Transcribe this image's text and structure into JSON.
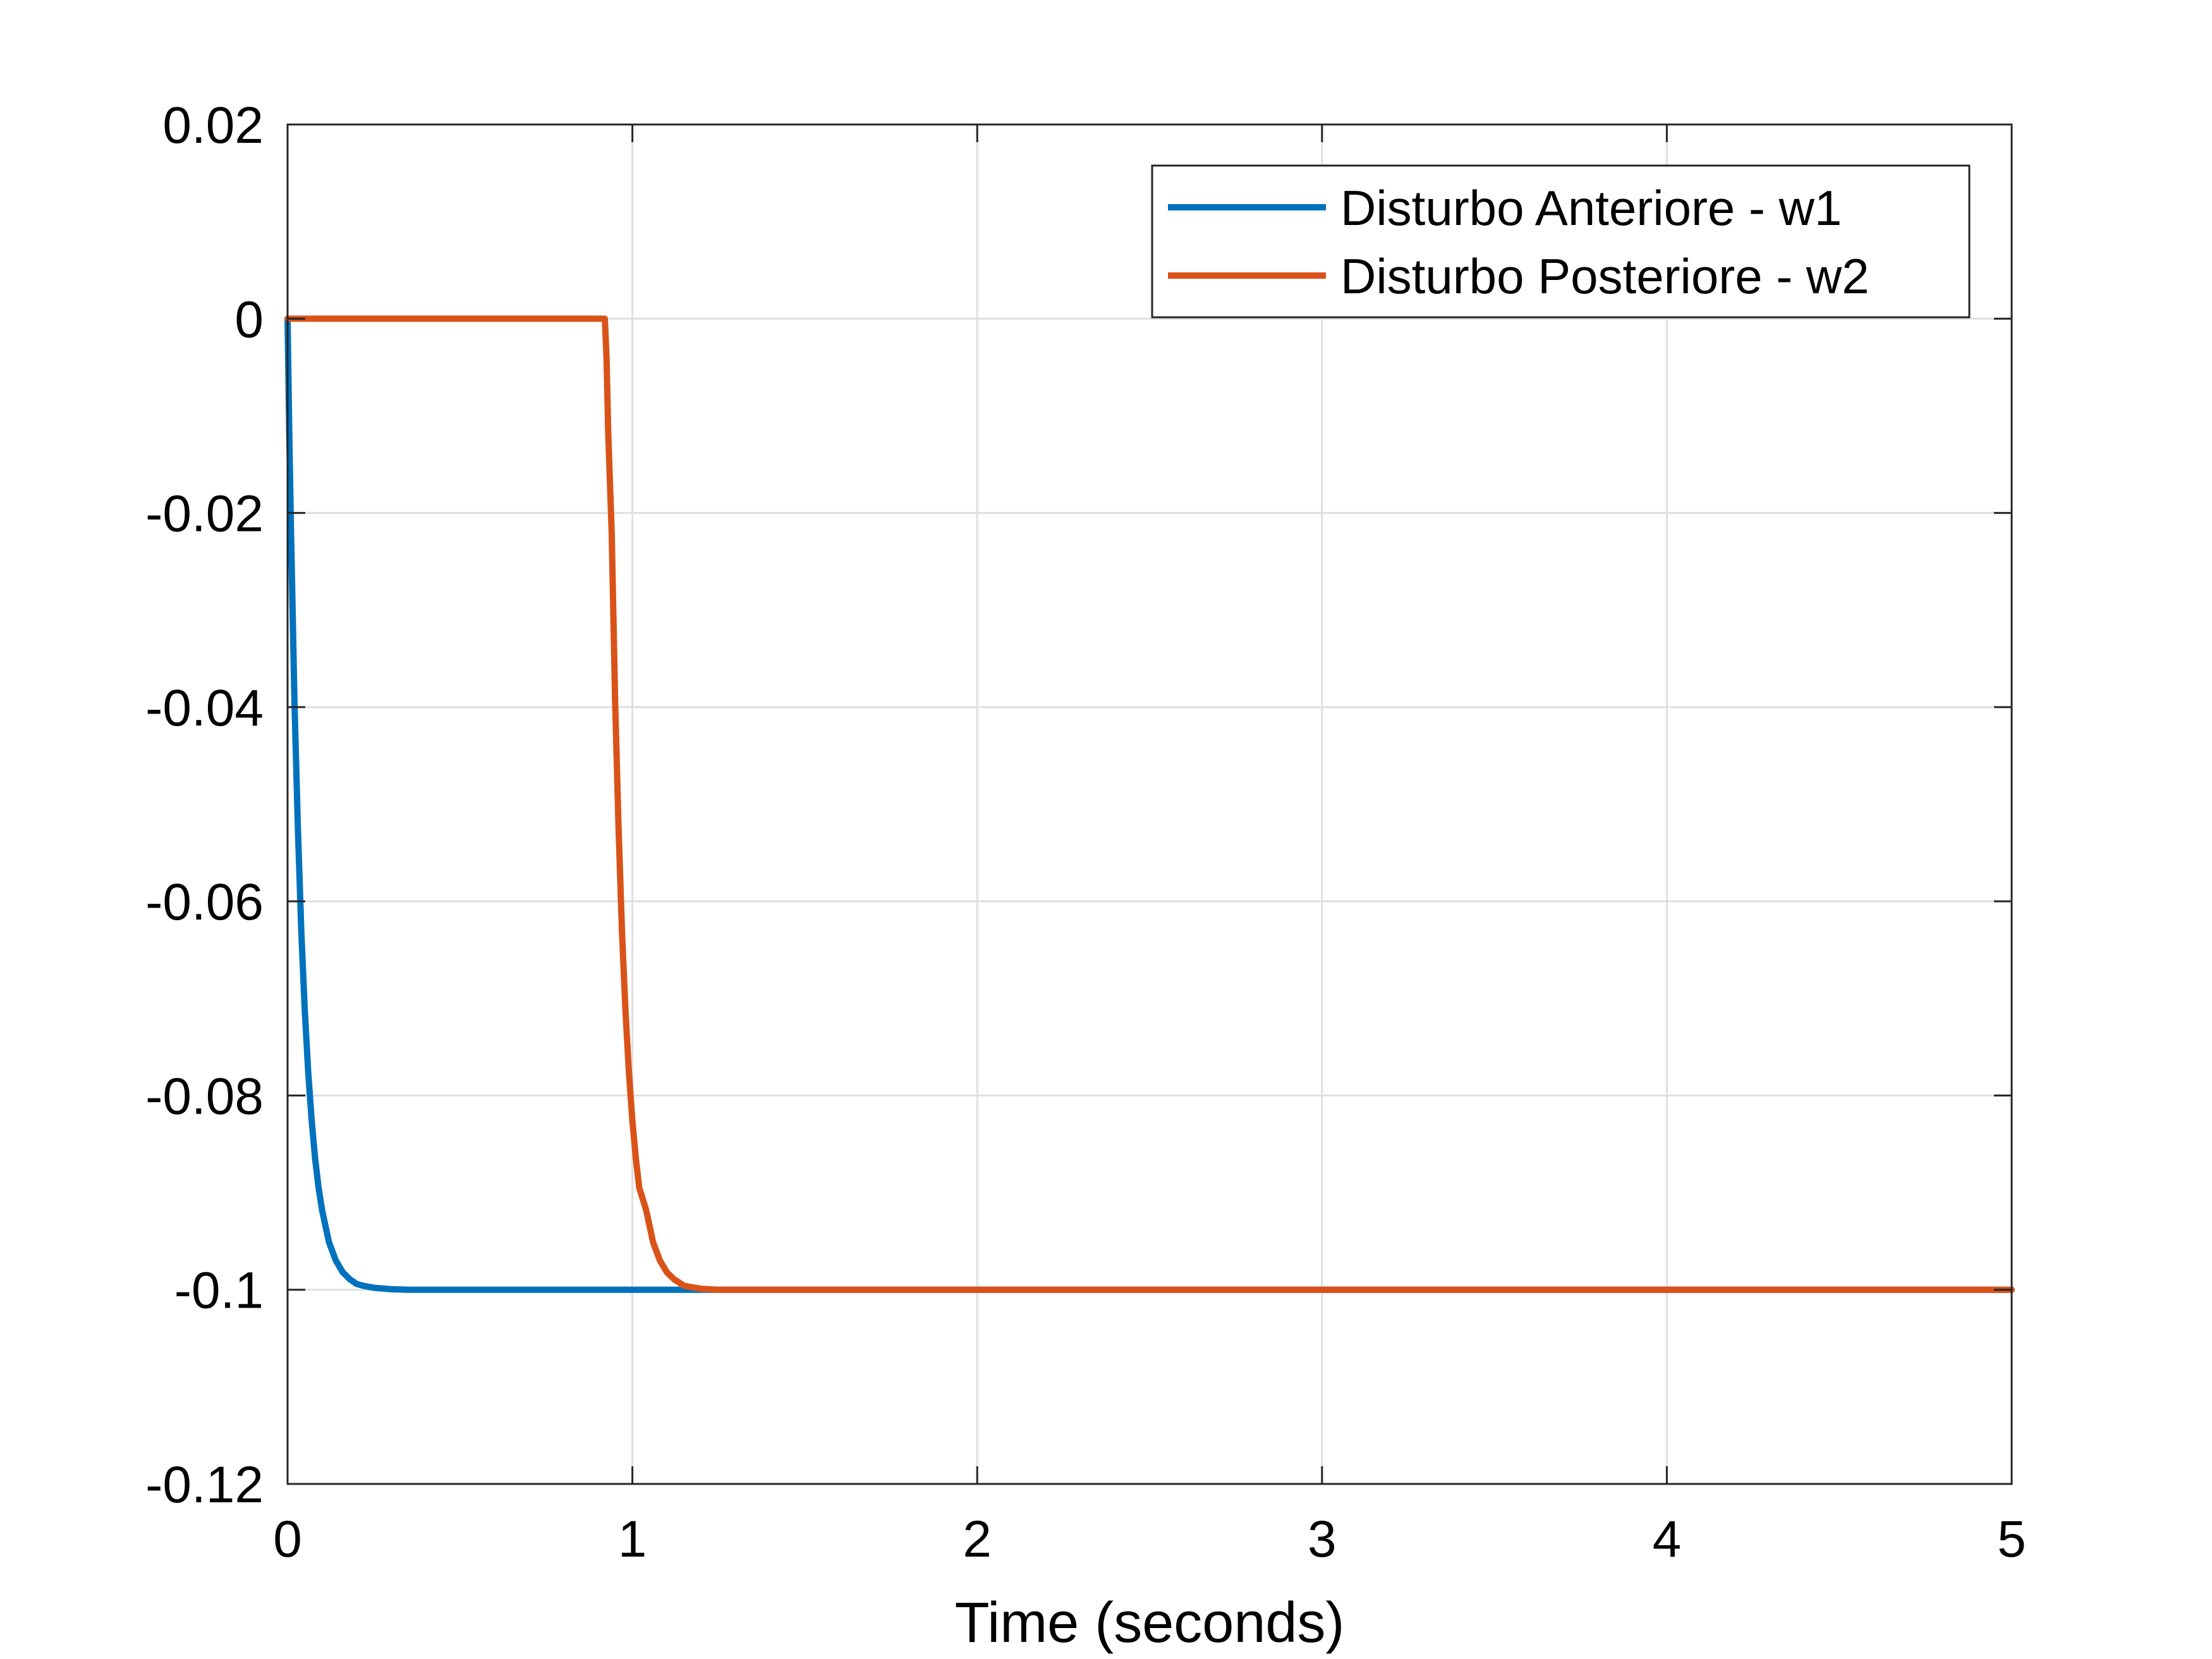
{
  "chart_data": {
    "type": "line",
    "title": "",
    "xlabel": "Time (seconds)",
    "ylabel": "",
    "xlim": [
      0,
      5
    ],
    "ylim": [
      -0.12,
      0.02
    ],
    "xticks": [
      0,
      1,
      2,
      3,
      4,
      5
    ],
    "xtick_labels": [
      "0",
      "1",
      "2",
      "3",
      "4",
      "5"
    ],
    "yticks": [
      0.02,
      0,
      -0.02,
      -0.04,
      -0.06,
      -0.08,
      -0.1,
      -0.12
    ],
    "ytick_labels": [
      "0.02",
      "0",
      "-0.02",
      "-0.04",
      "-0.06",
      "-0.08",
      "-0.1",
      "-0.12"
    ],
    "grid": true,
    "legend_position": "top-right",
    "series": [
      {
        "name": "Disturbo Anteriore - w1",
        "color": "#0072BD",
        "x": [
          0,
          0.005,
          0.01,
          0.02,
          0.03,
          0.04,
          0.05,
          0.06,
          0.07,
          0.08,
          0.09,
          0.1,
          0.12,
          0.14,
          0.16,
          0.18,
          0.2,
          0.22,
          0.25,
          0.3,
          0.35,
          0.4,
          0.5,
          0.7,
          1.0,
          1.3,
          5
        ],
        "y": [
          0,
          -0.0118,
          -0.0221,
          -0.0394,
          -0.0526,
          -0.0632,
          -0.0713,
          -0.0776,
          -0.0826,
          -0.0865,
          -0.0895,
          -0.0918,
          -0.0951,
          -0.097,
          -0.0982,
          -0.0989,
          -0.0994,
          -0.0996,
          -0.0998,
          -0.09995,
          -0.1,
          -0.1,
          -0.1,
          -0.1,
          -0.1,
          -0.1,
          -0.1
        ]
      },
      {
        "name": "Disturbo Posteriore - w2",
        "color": "#D95319",
        "x": [
          0,
          0.92,
          0.925,
          0.93,
          0.94,
          0.95,
          0.96,
          0.97,
          0.98,
          0.99,
          1.0,
          1.01,
          1.02,
          1.04,
          1.06,
          1.08,
          1.1,
          1.12,
          1.15,
          1.2,
          1.25,
          1.3,
          1.4,
          1.6,
          2.0,
          5
        ],
        "y": [
          0,
          0,
          -0.004,
          -0.0118,
          -0.0221,
          -0.0394,
          -0.0526,
          -0.0632,
          -0.0713,
          -0.0776,
          -0.0826,
          -0.0865,
          -0.0895,
          -0.0918,
          -0.0951,
          -0.097,
          -0.0982,
          -0.0989,
          -0.0996,
          -0.0999,
          -0.1,
          -0.1,
          -0.1,
          -0.1,
          -0.1,
          -0.1
        ]
      }
    ]
  }
}
